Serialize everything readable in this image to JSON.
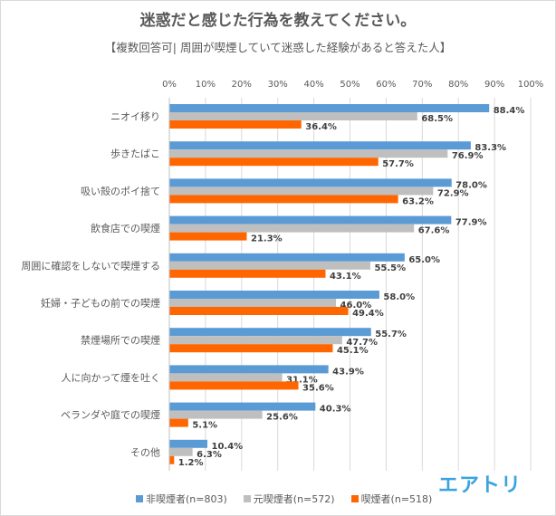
{
  "chart_data": {
    "type": "bar",
    "orientation": "horizontal",
    "title": "迷惑だと感じた行為を教えてください。",
    "subtitle": "【複数回答可| 周囲が喫煙していて迷惑した経験があると答えた人】",
    "xlabel": "",
    "ylabel": "",
    "xlim": [
      0,
      100
    ],
    "x_ticks": [
      "0%",
      "10%",
      "20%",
      "30%",
      "40%",
      "50%",
      "60%",
      "70%",
      "80%",
      "90%",
      "100%"
    ],
    "grid": true,
    "legend_position": "bottom",
    "categories": [
      "ニオイ移り",
      "歩きたばこ",
      "吸い殻のポイ捨て",
      "飲食店での喫煙",
      "周囲に確認をしないで喫煙する",
      "妊婦・子どもの前での喫煙",
      "禁煙場所での喫煙",
      "人に向かって煙を吐く",
      "ベランダや庭での喫煙",
      "その他"
    ],
    "series": [
      {
        "name": "非喫煙者(n=803)",
        "color": "#5b9bd5",
        "values": [
          88.4,
          83.3,
          78.0,
          77.9,
          65.0,
          58.0,
          55.7,
          43.9,
          40.3,
          10.4
        ]
      },
      {
        "name": "元喫煙者(n=572)",
        "color": "#bfbfbf",
        "values": [
          68.5,
          76.9,
          72.9,
          67.6,
          55.5,
          46.0,
          47.7,
          31.1,
          25.6,
          6.3
        ]
      },
      {
        "name": "喫煙者(n=518)",
        "color": "#ff6600",
        "values": [
          36.4,
          57.7,
          63.2,
          21.3,
          43.1,
          49.4,
          45.1,
          35.6,
          5.1,
          1.2
        ]
      }
    ],
    "value_suffix": "%"
  },
  "brand": "エアトリ"
}
